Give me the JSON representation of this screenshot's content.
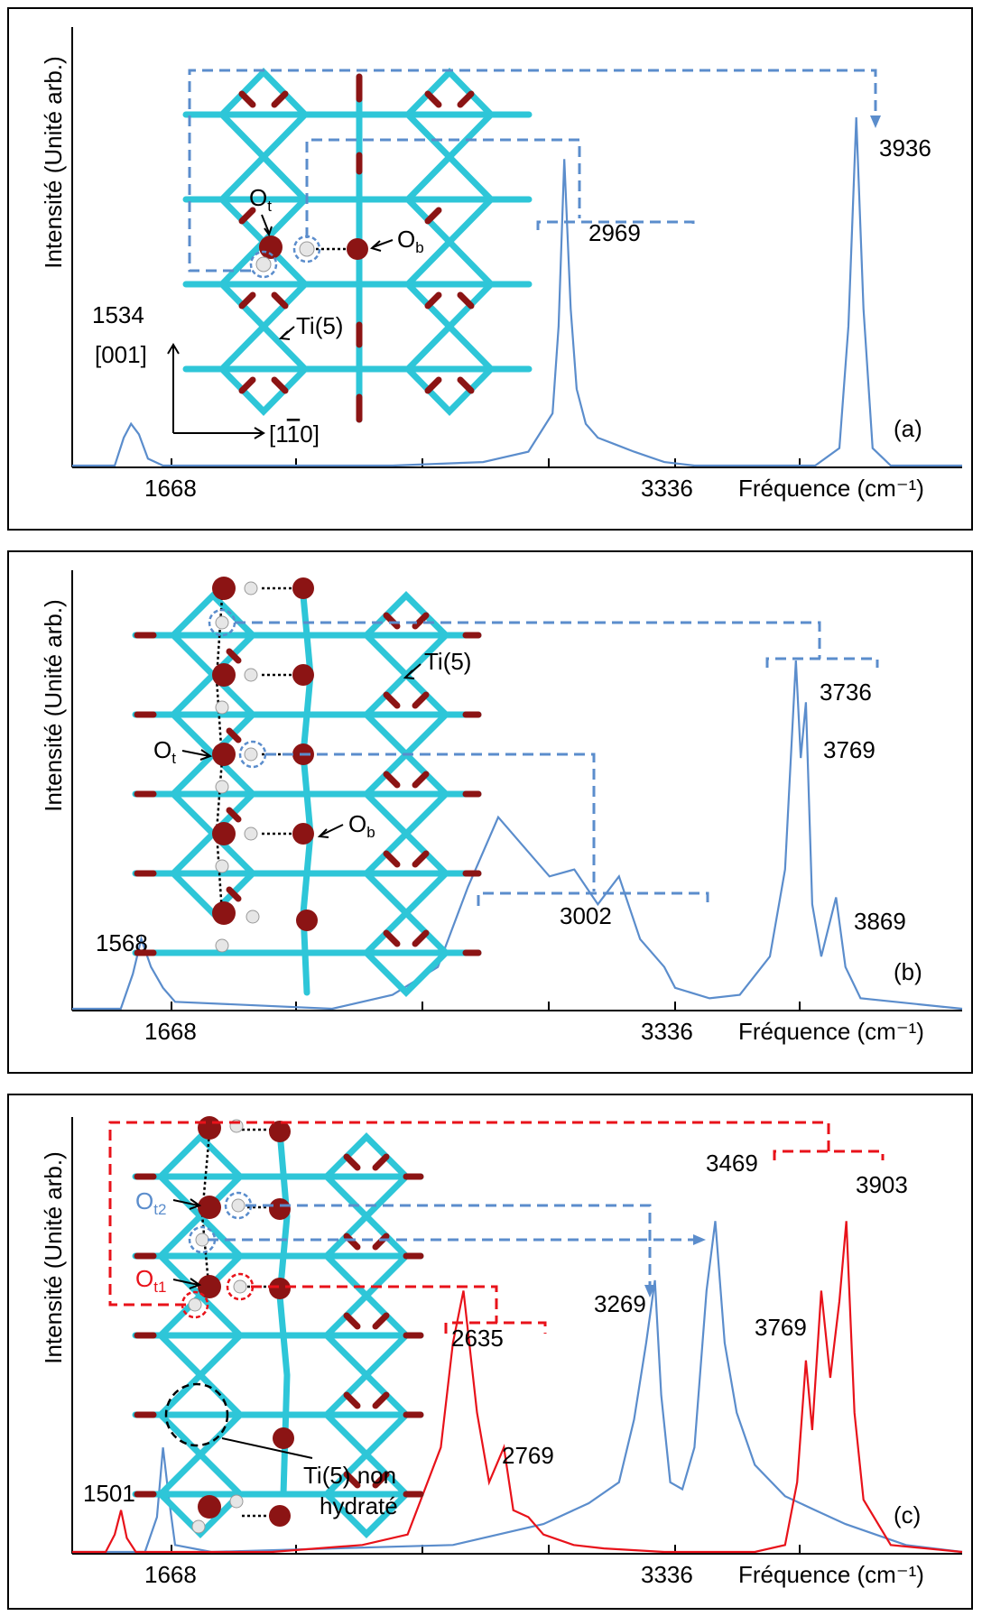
{
  "y_label": "Intensité (Unité arb.)",
  "x_label": "Fréquence (cm⁻¹)",
  "x_ticks": [
    "1668",
    "3336"
  ],
  "colors": {
    "blue": "#5b8dcc",
    "red": "#e8121a",
    "ti": "#2ec6d8",
    "o": "#8c1414",
    "h": "#e6e6e6"
  },
  "panels": [
    {
      "id": "a",
      "tag": "(a)",
      "peak_labels": [
        "1534",
        "2969",
        "3936"
      ],
      "struct_labels": {
        "ot": "O",
        "ot_sub": "t",
        "ob": "O",
        "ob_sub": "b",
        "ti": "Ti(5)"
      },
      "axes": {
        "dir_001": "[001]",
        "dir_110": "[1",
        "dir_110_bar": "1",
        "dir_110_end": "0]"
      }
    },
    {
      "id": "b",
      "tag": "(b)",
      "peak_labels": [
        "1568",
        "3002",
        "3736",
        "3769",
        "3869"
      ],
      "struct_labels": {
        "ot": "O",
        "ot_sub": "t",
        "ob": "O",
        "ob_sub": "b",
        "ti": "Ti(5)"
      }
    },
    {
      "id": "c",
      "tag": "(c)",
      "peak_labels": [
        "1501",
        "2635",
        "2769",
        "3269",
        "3469",
        "3769",
        "3903"
      ],
      "struct_labels": {
        "ot2": "O",
        "ot2_sub": "t2",
        "ot1": "O",
        "ot1_sub": "t1",
        "ti_line1": "Ti(5) non",
        "ti_line2": "hydraté"
      }
    }
  ],
  "chart_data": [
    {
      "type": "line",
      "title": "",
      "xlabel": "Fréquence (cm⁻¹)",
      "ylabel": "Intensité (Unité arb.)",
      "xlim": [
        600,
        4400
      ],
      "ticks_labeled": [
        1668,
        3336
      ],
      "series": [
        {
          "color": "#5b8dcc",
          "x": [
            600,
            1480,
            1510,
            1534,
            1560,
            1590,
            1640,
            2400,
            2700,
            2850,
            2930,
            2950,
            2969,
            2990,
            3010,
            3040,
            3080,
            3140,
            3200,
            3300,
            3400,
            3800,
            3880,
            3910,
            3936,
            3960,
            3990,
            4050,
            4400
          ],
          "y": [
            0,
            0,
            0.08,
            0.12,
            0.09,
            0.02,
            0,
            0,
            0.01,
            0.04,
            0.15,
            0.4,
            0.88,
            0.45,
            0.22,
            0.12,
            0.08,
            0.06,
            0.04,
            0.01,
            0,
            0,
            0.05,
            0.4,
            1.0,
            0.45,
            0.05,
            0,
            0
          ]
        }
      ]
    },
    {
      "type": "line",
      "title": "",
      "xlabel": "Fréquence (cm⁻¹)",
      "ylabel": "Intensité (Unité arb.)",
      "xlim": [
        600,
        4400
      ],
      "ticks_labeled": [
        1668,
        3336
      ],
      "series": [
        {
          "color": "#5b8dcc",
          "x": [
            600,
            1500,
            1540,
            1568,
            1600,
            1640,
            1680,
            2200,
            2400,
            2550,
            2650,
            2750,
            2850,
            2920,
            3002,
            3080,
            3150,
            3220,
            3300,
            3336,
            3450,
            3550,
            3650,
            3700,
            3736,
            3752,
            3769,
            3790,
            3820,
            3869,
            3900,
            3950,
            4400
          ],
          "y": [
            0,
            0,
            0.1,
            0.2,
            0.12,
            0.06,
            0.02,
            0,
            0.04,
            0.12,
            0.35,
            0.55,
            0.45,
            0.38,
            0.4,
            0.3,
            0.38,
            0.2,
            0.12,
            0.06,
            0.03,
            0.04,
            0.15,
            0.4,
            1.0,
            0.72,
            0.88,
            0.3,
            0.15,
            0.32,
            0.12,
            0.03,
            0
          ]
        }
      ]
    },
    {
      "type": "line",
      "title": "",
      "xlabel": "Fréquence (cm⁻¹)",
      "ylabel": "Intensité (Unité arb.)",
      "xlim": [
        600,
        4400
      ],
      "ticks_labeled": [
        1668,
        3336
      ],
      "series": [
        {
          "color": "#e8121a",
          "x": [
            600,
            1450,
            1480,
            1501,
            1520,
            1550,
            2000,
            2300,
            2450,
            2560,
            2600,
            2635,
            2680,
            2720,
            2769,
            2800,
            2850,
            2900,
            3000,
            3100,
            3300,
            3600,
            3700,
            3740,
            3769,
            3790,
            3820,
            3850,
            3880,
            3903,
            3930,
            3960,
            4050,
            4400
          ],
          "y": [
            0,
            0,
            0.05,
            0.12,
            0.04,
            0,
            0,
            0.02,
            0.05,
            0.3,
            0.6,
            0.75,
            0.4,
            0.2,
            0.3,
            0.12,
            0.1,
            0.05,
            0.02,
            0.01,
            0,
            0,
            0.02,
            0.2,
            0.55,
            0.35,
            0.75,
            0.5,
            0.72,
            0.95,
            0.4,
            0.15,
            0.02,
            0
          ]
        },
        {
          "color": "#5b8dcc",
          "x": [
            600,
            1580,
            1620,
            1640,
            1660,
            1680,
            1800,
            2600,
            2900,
            3050,
            3150,
            3200,
            3240,
            3269,
            3290,
            3320,
            3360,
            3400,
            3440,
            3469,
            3500,
            3540,
            3600,
            3700,
            3800,
            3900,
            4000,
            4100,
            4400
          ],
          "y": [
            0,
            0,
            0.1,
            0.3,
            0.15,
            0.02,
            0,
            0.02,
            0.08,
            0.14,
            0.2,
            0.38,
            0.6,
            0.78,
            0.45,
            0.2,
            0.18,
            0.3,
            0.75,
            0.95,
            0.6,
            0.4,
            0.25,
            0.16,
            0.12,
            0.08,
            0.05,
            0.02,
            0
          ]
        }
      ]
    }
  ]
}
